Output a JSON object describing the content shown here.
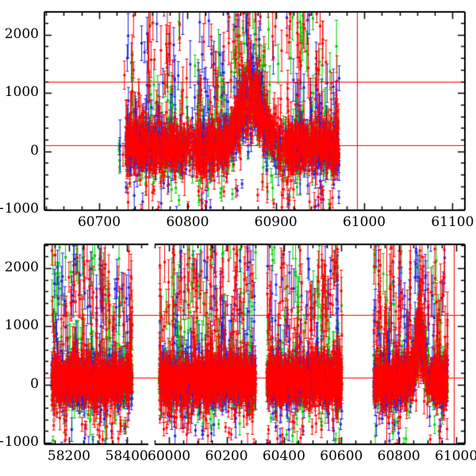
{
  "figure": {
    "background": "#ffffff",
    "axis_color": "#000000",
    "tick_label_color": "#000000"
  },
  "palette": {
    "green_series": "#00cc00",
    "blue_series": "#2222dd",
    "red_series": "#ff0000",
    "reference_line": "#ff0000"
  },
  "chart_data": [
    {
      "id": "top-panel",
      "type": "scatter",
      "title": "",
      "xlabel": "",
      "ylabel": "",
      "grid": false,
      "legend": null,
      "seed": 101,
      "sub_panels": [
        {
          "x_axis": {
            "lim": [
              60638,
              61114
            ],
            "major_ticks": [
              60700,
              60800,
              60900,
              61000,
              61100
            ],
            "tick_labels": [
              "60700",
              "60800",
              "60900",
              "61000",
              "61100"
            ],
            "minor_step": 20
          }
        }
      ],
      "y_axis": {
        "lim": [
          -1010,
          2390
        ],
        "major_ticks": [
          2000,
          1000,
          0,
          -1000
        ],
        "tick_labels": [
          "2000",
          "1000",
          "0",
          "−1000"
        ],
        "minor_step": 200
      },
      "reference_lines": {
        "horizontal_y": [
          1200,
          110
        ],
        "vertical_x": [
          60756,
          60992
        ]
      },
      "series": [
        {
          "name": "green-points",
          "color": "#00cc00",
          "marker": "square-with-error-bar"
        },
        {
          "name": "blue-points",
          "color": "#2222dd",
          "marker": "square-with-error-bar"
        },
        {
          "name": "red-points",
          "color": "#ff0000",
          "marker": "square-with-error-bar"
        }
      ],
      "clusters": [
        {
          "sub": 0,
          "x_range": [
            60722,
            60742
          ],
          "counts": [
            7,
            9,
            9
          ]
        },
        {
          "sub": 0,
          "x_range": [
            60730,
            60972
          ],
          "counts": [
            900,
            900,
            1450
          ],
          "flare": {
            "center": 60872,
            "sigma": 13,
            "amplitude": 1000
          },
          "gaps": [
            [
              60795,
              60810,
              0.45
            ],
            [
              60896,
              60912,
              0.55
            ]
          ]
        }
      ],
      "noise_model": {
        "baseline_mean": 70,
        "baseline_sd": 185,
        "up_spike_prob": 0.18,
        "up_spike_max": 2350,
        "down_spike_prob": 0.09,
        "down_spike_max": 1100,
        "err_base": 65,
        "err_sd": 85,
        "spike_err_extra_min": 60,
        "spike_err_extra_max": 280
      }
    },
    {
      "id": "bottom-panel",
      "type": "scatter",
      "title": "",
      "xlabel": "",
      "ylabel": "",
      "grid": false,
      "legend": null,
      "seed": 202,
      "sub_panels": [
        {
          "x_axis": {
            "lim": [
              58115,
              58475
            ],
            "major_ticks": [
              58200,
              58400
            ],
            "tick_labels": [
              "58200",
              "58400"
            ],
            "minor_step": 50
          }
        },
        {
          "x_axis": {
            "lim": [
              59950,
              61030
            ],
            "major_ticks": [
              60000,
              60200,
              60400,
              60600,
              60800,
              61000
            ],
            "tick_labels": [
              "60000",
              "60200",
              "60400",
              "60600",
              "60800",
              "61000"
            ],
            "minor_step": 50
          }
        }
      ],
      "y_axis": {
        "lim": [
          -1030,
          2410
        ],
        "major_ticks": [
          2000,
          1000,
          0,
          -1000
        ],
        "tick_labels": [
          "2000",
          "1000",
          "0",
          "−1000"
        ],
        "minor_step": 200
      },
      "reference_lines": {
        "horizontal_y": [
          1200,
          110
        ],
        "vertical_x": [
          60756,
          60992
        ]
      },
      "series": [
        {
          "name": "green-points",
          "color": "#00cc00",
          "marker": "square-with-error-bar"
        },
        {
          "name": "blue-points",
          "color": "#2222dd",
          "marker": "square-with-error-bar"
        },
        {
          "name": "red-points",
          "color": "#ff0000",
          "marker": "square-with-error-bar"
        }
      ],
      "clusters": [
        {
          "sub": 0,
          "x_range": [
            58140,
            58420
          ],
          "counts": [
            460,
            460,
            720
          ]
        },
        {
          "sub": 1,
          "x_range": [
            59965,
            60302
          ],
          "counts": [
            560,
            560,
            900
          ]
        },
        {
          "sub": 1,
          "x_range": [
            60340,
            60602
          ],
          "counts": [
            440,
            440,
            710
          ]
        },
        {
          "sub": 1,
          "x_range": [
            60712,
            60970
          ],
          "counts": [
            440,
            440,
            710
          ],
          "flare": {
            "center": 60872,
            "sigma": 13,
            "amplitude": 1000
          },
          "gaps": [
            [
              60896,
              60912,
              0.5
            ]
          ]
        }
      ],
      "noise_model": {
        "baseline_mean": 70,
        "baseline_sd": 185,
        "up_spike_prob": 0.18,
        "up_spike_max": 2350,
        "down_spike_prob": 0.09,
        "down_spike_max": 1100,
        "err_base": 65,
        "err_sd": 85,
        "spike_err_extra_min": 60,
        "spike_err_extra_max": 280
      }
    }
  ]
}
